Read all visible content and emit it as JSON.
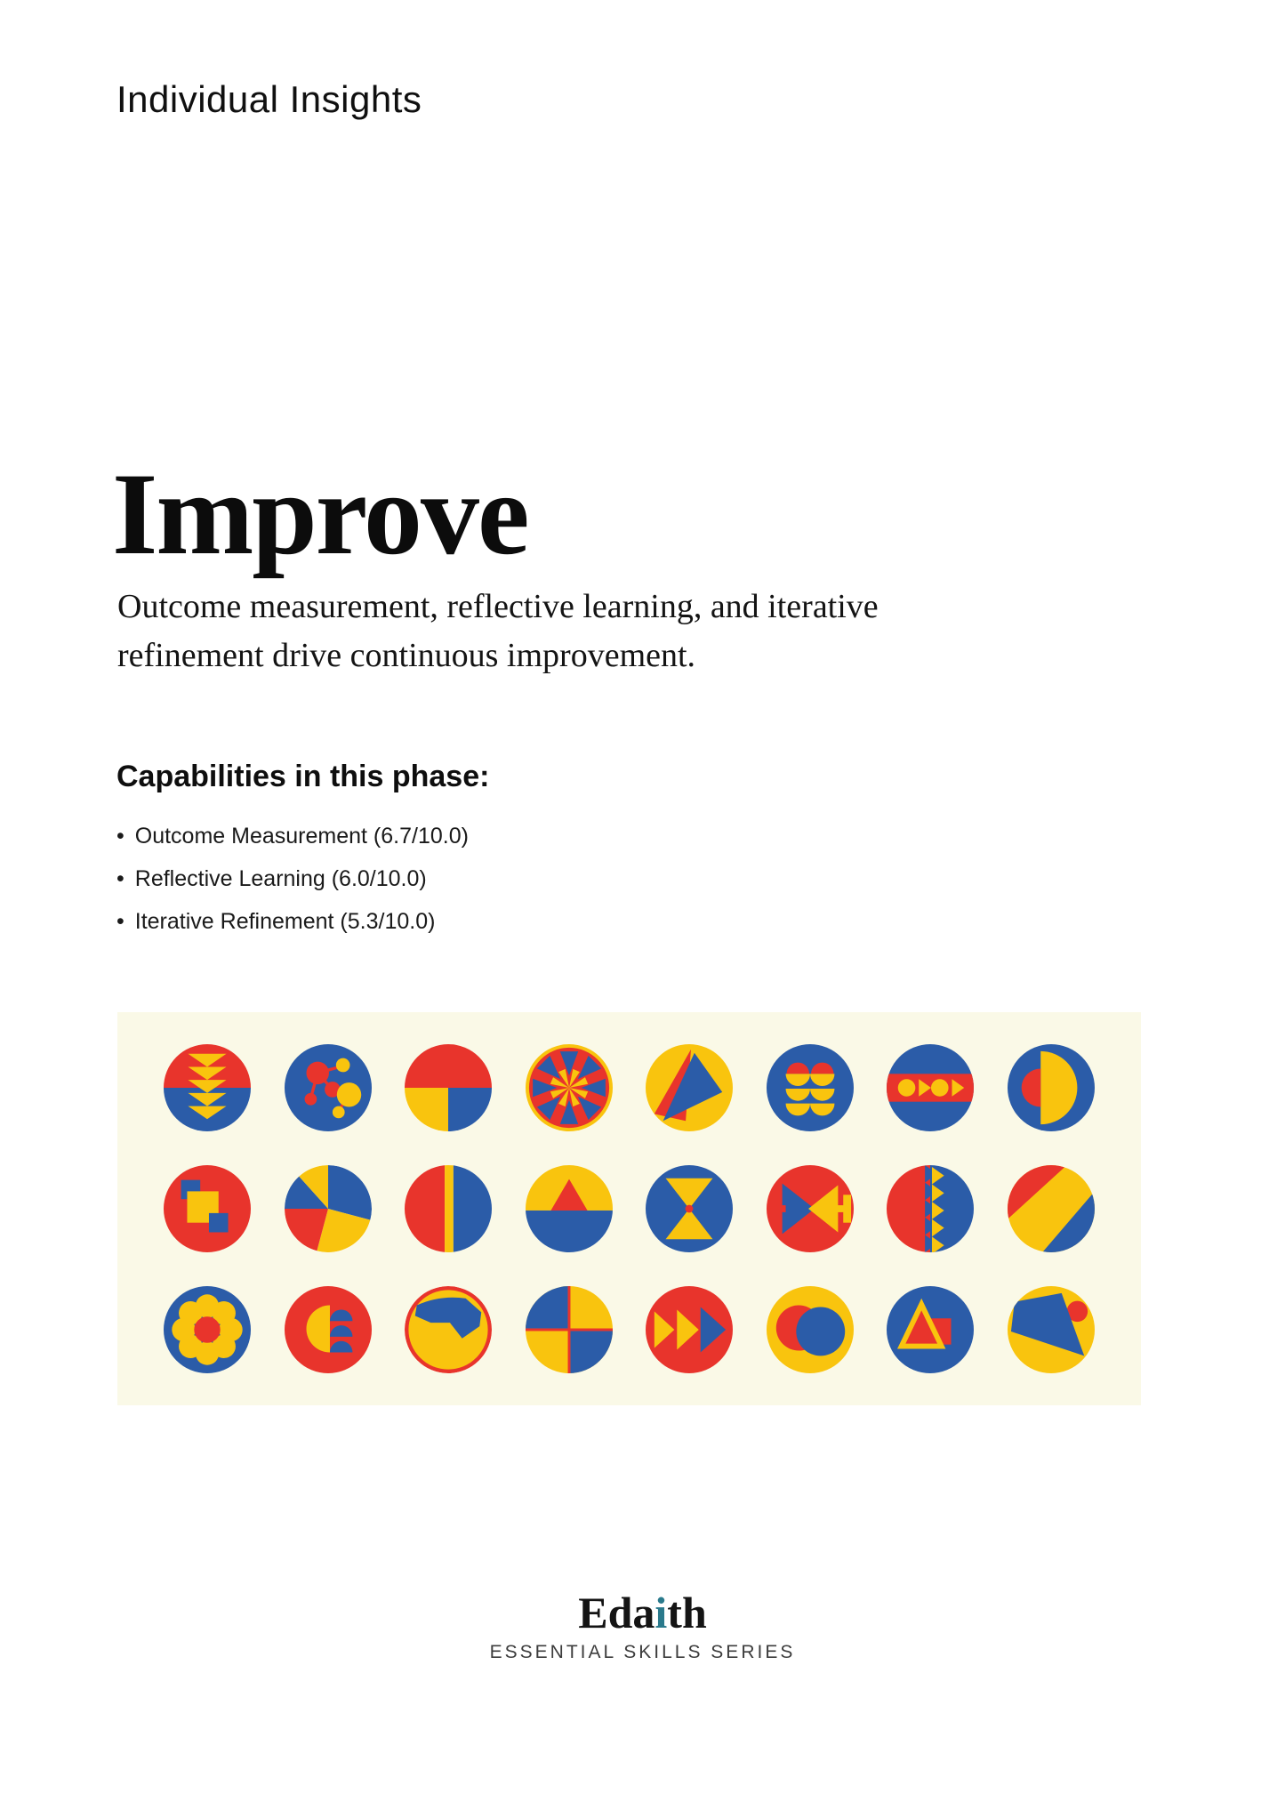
{
  "page": {
    "header": "Individual Insights",
    "title": "Improve",
    "subtitle_line1": "Outcome measurement, reflective learning, and iterative",
    "subtitle_line2": "refinement drive continuous improvement.",
    "capabilities_heading": "Capabilities in this phase:",
    "bullet": "•",
    "capabilities": [
      {
        "name": "Outcome Measurement",
        "score": 6.7,
        "max": 10.0,
        "display": "Outcome Measurement (6.7/10.0)"
      },
      {
        "name": "Reflective Learning",
        "score": 6.0,
        "max": 10.0,
        "display": "Reflective Learning (6.0/10.0)"
      },
      {
        "name": "Iterative Refinement",
        "score": 5.3,
        "max": 10.0,
        "display": "Iterative Refinement (5.3/10.0)"
      }
    ],
    "footer": {
      "brand": "Edaith",
      "brand_pre": "Eda",
      "brand_accent": "i",
      "brand_post": "th",
      "series": "ESSENTIAL SKILLS SERIES"
    }
  },
  "colors": {
    "red": "#E8342C",
    "blue": "#2B5CA8",
    "yellow": "#F9C40E",
    "cream": "#FAF9E7",
    "teal": "#2A7A8C",
    "text": "#111111"
  },
  "badge_rows": [
    [
      "triangles-cascade",
      "network-nodes",
      "quarter-split",
      "compass-mandala",
      "overlapping-triangles",
      "scalloped-rows",
      "shapes-band",
      "half-disc-moon"
    ],
    [
      "stacked-squares",
      "pinwheel-pie",
      "split-stripe",
      "mountain-horizon",
      "hourglass-triangles",
      "opposing-arrows",
      "zigzag-divide",
      "diagonal-bands"
    ],
    [
      "flower-petals",
      "arches-stack",
      "wave-blob",
      "quadrant-cross",
      "fast-forward",
      "eclipse-circles",
      "triangle-square",
      "sail-dot"
    ]
  ]
}
